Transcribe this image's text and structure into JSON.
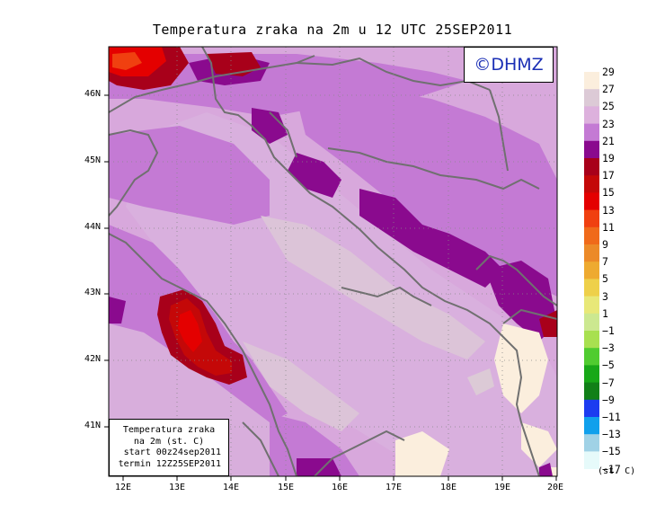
{
  "title": "Temperatura zraka na 2m u 12 UTC 25SEP2011",
  "watermark": "©DHMZ",
  "infobox": {
    "line1": "Temperatura zraka",
    "line2": "na 2m (st. C)",
    "line3": "start 00z24sep2011",
    "line4": "termin 12Z25SEP2011"
  },
  "lon_labels": [
    "12E",
    "13E",
    "14E",
    "15E",
    "16E",
    "17E",
    "18E",
    "19E",
    "20E"
  ],
  "lat_labels": [
    "46N",
    "45N",
    "44N",
    "43N",
    "42N",
    "41N"
  ],
  "legend": {
    "unit": "(st. C)",
    "labels": [
      "29",
      "27",
      "25",
      "23",
      "21",
      "19",
      "17",
      "15",
      "13",
      "11",
      "9",
      "7",
      "5",
      "3",
      "1",
      "−1",
      "−3",
      "−5",
      "−7",
      "−9",
      "−11",
      "−13",
      "−15",
      "−17"
    ],
    "colors": [
      "#fbeedd",
      "#dccad6",
      "#ddb1dd",
      "#c47ad4",
      "#8a0a8e",
      "#a8001a",
      "#c40808",
      "#e40000",
      "#f04010",
      "#f06a1a",
      "#ec8a28",
      "#eeaa30",
      "#eed04a",
      "#e8e878",
      "#cce890",
      "#a8e050",
      "#50cc30",
      "#18a818",
      "#118018",
      "#1c3cf0",
      "#10a0ec",
      "#a0d2e6",
      "#e6fafa"
    ],
    "color_names": [
      "cream",
      "light-pink",
      "pink",
      "light-purple",
      "purple",
      "dark-red",
      "red",
      "bright-red",
      "orange-red",
      "orange",
      "orange-light",
      "amber",
      "yellow",
      "light-yellow",
      "pale-green",
      "lime",
      "green",
      "mid-green",
      "dark-green",
      "blue",
      "sky-blue",
      "light-blue",
      "pale-cyan"
    ]
  }
}
